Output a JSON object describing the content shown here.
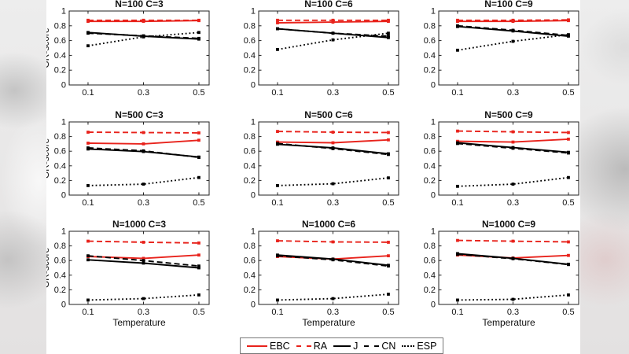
{
  "chart_data": {
    "type": "line",
    "x": [
      0.1,
      0.3,
      0.5
    ],
    "xtick_labels": [
      "0.1",
      "0.3",
      "0.5"
    ],
    "yticks": [
      0,
      0.2,
      0.4,
      0.6,
      0.8,
      1
    ],
    "ytick_labels": [
      "0",
      "0.2",
      "0.4",
      "0.6",
      "0.8",
      "1"
    ],
    "ylim": [
      0,
      1
    ],
    "xlim": [
      0.032,
      0.537
    ],
    "xlabel": "Temperature",
    "ylabel": "GR-score",
    "grid": false,
    "legend_position": "bottom",
    "series_styles": [
      {
        "name": "EBC",
        "color": "#e8231c",
        "line": "solid"
      },
      {
        "name": "RA",
        "color": "#e8231c",
        "line": "dashed"
      },
      {
        "name": "J",
        "color": "#000000",
        "line": "solid"
      },
      {
        "name": "CN",
        "color": "#000000",
        "line": "dashed"
      },
      {
        "name": "ESP",
        "color": "#000000",
        "line": "dotted"
      }
    ],
    "subplots": [
      {
        "title": "N=100 C=3",
        "series": {
          "EBC": [
            0.86,
            0.86,
            0.87
          ],
          "RA": [
            0.875,
            0.875,
            0.875
          ],
          "J": [
            0.71,
            0.66,
            0.62
          ],
          "CN": [
            0.7,
            0.665,
            0.63
          ],
          "ESP": [
            0.53,
            0.65,
            0.71
          ]
        }
      },
      {
        "title": "N=100 C=6",
        "series": {
          "EBC": [
            0.84,
            0.85,
            0.86
          ],
          "RA": [
            0.875,
            0.875,
            0.875
          ],
          "J": [
            0.76,
            0.7,
            0.64
          ],
          "CN": [
            0.76,
            0.7,
            0.66
          ],
          "ESP": [
            0.48,
            0.61,
            0.7
          ]
        }
      },
      {
        "title": "N=100 C=9",
        "series": {
          "EBC": [
            0.86,
            0.86,
            0.87
          ],
          "RA": [
            0.875,
            0.875,
            0.88
          ],
          "J": [
            0.79,
            0.73,
            0.66
          ],
          "CN": [
            0.8,
            0.74,
            0.67
          ],
          "ESP": [
            0.47,
            0.59,
            0.68
          ]
        }
      },
      {
        "title": "N=500 C=3",
        "series": {
          "EBC": [
            0.71,
            0.7,
            0.75
          ],
          "RA": [
            0.86,
            0.855,
            0.85
          ],
          "J": [
            0.63,
            0.595,
            0.52
          ],
          "CN": [
            0.645,
            0.605,
            0.515
          ],
          "ESP": [
            0.13,
            0.15,
            0.24
          ]
        }
      },
      {
        "title": "N=500 C=6",
        "series": {
          "EBC": [
            0.725,
            0.715,
            0.755
          ],
          "RA": [
            0.87,
            0.86,
            0.855
          ],
          "J": [
            0.695,
            0.645,
            0.565
          ],
          "CN": [
            0.705,
            0.635,
            0.555
          ],
          "ESP": [
            0.13,
            0.155,
            0.235
          ]
        }
      },
      {
        "title": "N=500 C=9",
        "series": {
          "EBC": [
            0.735,
            0.725,
            0.765
          ],
          "RA": [
            0.875,
            0.865,
            0.855
          ],
          "J": [
            0.715,
            0.65,
            0.585
          ],
          "CN": [
            0.705,
            0.64,
            0.575
          ],
          "ESP": [
            0.12,
            0.15,
            0.24
          ]
        }
      },
      {
        "title": "N=1000 C=3",
        "series": {
          "EBC": [
            0.655,
            0.63,
            0.675
          ],
          "RA": [
            0.865,
            0.85,
            0.84
          ],
          "J": [
            0.61,
            0.565,
            0.5
          ],
          "CN": [
            0.665,
            0.6,
            0.525
          ],
          "ESP": [
            0.06,
            0.08,
            0.13
          ]
        }
      },
      {
        "title": "N=1000 C=6",
        "series": {
          "EBC": [
            0.655,
            0.62,
            0.665
          ],
          "RA": [
            0.87,
            0.855,
            0.85
          ],
          "J": [
            0.675,
            0.62,
            0.535
          ],
          "CN": [
            0.665,
            0.61,
            0.525
          ],
          "ESP": [
            0.06,
            0.08,
            0.14
          ]
        }
      },
      {
        "title": "N=1000 C=9",
        "series": {
          "EBC": [
            0.675,
            0.635,
            0.67
          ],
          "RA": [
            0.875,
            0.865,
            0.855
          ],
          "J": [
            0.695,
            0.63,
            0.55
          ],
          "CN": [
            0.685,
            0.625,
            0.545
          ],
          "ESP": [
            0.06,
            0.07,
            0.13
          ]
        }
      }
    ]
  }
}
